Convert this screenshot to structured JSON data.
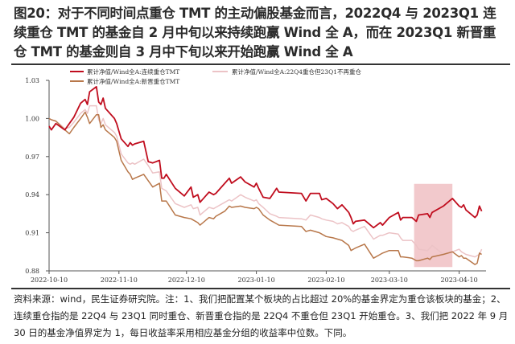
{
  "title": "图20：对于不同时间点重仓 TMT 的主动偏股基金而言，2022Q4 与 2023Q1 连续重仓 TMT 的基金自 2 月中旬以来持续跑赢 Wind 全 A，而在 2023Q1 新晋重仓 TMT 的基金则自 3 月中下旬以来开始跑赢 Wind 全 A",
  "source": "资料来源：wind，民生证券研究院。注：1、我们把配置某个板块的占比超过 20%的基金界定为重仓该板块的基金；2、连续重仓指的是 22Q4 与 23Q1 同时重仓、新晋重仓指的是 22Q4 不重仓但 23Q1 开始重仓。3、我们把 2022 年 9 月 30 日的基金净值界定为 1，每日收益率采用相应基金分组的收益率中位数。下同。",
  "chart_data": {
    "type": "line",
    "ylim": [
      0.88,
      1.03
    ],
    "yticks": [
      "1.03",
      "1.00",
      "0.97",
      "0.94",
      "0.91",
      "0.88"
    ],
    "xticks": [
      "2022-10-10",
      "2022-11-10",
      "2022-12-10",
      "2023-01-10",
      "2023-02-10",
      "2023-03-10",
      "2023-04-10"
    ],
    "grid": false,
    "legend_position": "top",
    "highlight_band": {
      "x": [
        "2023-03-21",
        "2023-04-07"
      ],
      "y": [
        0.883,
        0.9485
      ],
      "color": "#e9a5aa"
    },
    "x": [
      "2022-10-10",
      "2022-10-11",
      "2022-10-13",
      "2022-10-17",
      "2022-10-19",
      "2022-10-21",
      "2022-10-24",
      "2022-10-26",
      "2022-10-27",
      "2022-10-28",
      "2022-10-31",
      "2022-11-01",
      "2022-11-02",
      "2022-11-03",
      "2022-11-04",
      "2022-11-08",
      "2022-11-09",
      "2022-11-11",
      "2022-11-14",
      "2022-11-15",
      "2022-11-16",
      "2022-11-17",
      "2022-11-21",
      "2022-11-23",
      "2022-11-25",
      "2022-11-28",
      "2022-11-29",
      "2022-11-30",
      "2022-12-01",
      "2022-12-05",
      "2022-12-09",
      "2022-12-12",
      "2022-12-13",
      "2022-12-15",
      "2022-12-16",
      "2022-12-20",
      "2022-12-22",
      "2022-12-23",
      "2022-12-27",
      "2022-12-29",
      "2022-12-30",
      "2023-01-03",
      "2023-01-05",
      "2023-01-09",
      "2023-01-10",
      "2023-01-11",
      "2023-01-13",
      "2023-01-16",
      "2023-01-19",
      "2023-01-20",
      "2023-01-30",
      "2023-02-01",
      "2023-02-03",
      "2023-02-07",
      "2023-02-08",
      "2023-02-10",
      "2023-02-13",
      "2023-02-15",
      "2023-02-17",
      "2023-02-20",
      "2023-02-21",
      "2023-02-22",
      "2023-02-23",
      "2023-02-27",
      "2023-03-03",
      "2023-03-06",
      "2023-03-07",
      "2023-03-10",
      "2023-03-14",
      "2023-03-15",
      "2023-03-16",
      "2023-03-20",
      "2023-03-22",
      "2023-03-23",
      "2023-03-27",
      "2023-03-28",
      "2023-03-29",
      "2023-04-03",
      "2023-04-07",
      "2023-04-10",
      "2023-04-11",
      "2023-04-12",
      "2023-04-13",
      "2023-04-17",
      "2023-04-18",
      "2023-04-19",
      "2023-04-20"
    ],
    "series": [
      {
        "name": "累计净值/Wind全A:连续重仓TMT",
        "color": "#c00d1e",
        "values": [
          0.994,
          0.991,
          0.996,
          0.991,
          0.996,
          1.001,
          1.012,
          1.015,
          1.011,
          1.021,
          1.025,
          1.013,
          1.011,
          1.016,
          1.008,
          1.0,
          0.996,
          0.984,
          0.978,
          0.981,
          0.979,
          0.98,
          0.982,
          0.966,
          0.965,
          0.967,
          0.953,
          0.953,
          0.956,
          0.945,
          0.939,
          0.946,
          0.938,
          0.94,
          0.934,
          0.942,
          0.94,
          0.941,
          0.949,
          0.953,
          0.949,
          0.954,
          0.95,
          0.946,
          0.949,
          0.945,
          0.938,
          0.937,
          0.945,
          0.942,
          0.941,
          0.935,
          0.941,
          0.941,
          0.936,
          0.937,
          0.933,
          0.929,
          0.932,
          0.926,
          0.922,
          0.917,
          0.919,
          0.92,
          0.914,
          0.918,
          0.916,
          0.922,
          0.926,
          0.92,
          0.922,
          0.922,
          0.919,
          0.924,
          0.925,
          0.922,
          0.926,
          0.931,
          0.937,
          0.931,
          0.93,
          0.932,
          0.928,
          0.922,
          0.924,
          0.931,
          0.927
        ]
      },
      {
        "name": "累计净值/Wind全A:22Q4重仓但23Q1不再重仓",
        "color": "#ecc3c6",
        "values": [
          1.0,
          0.999,
          0.998,
          0.992,
          0.993,
          0.997,
          1.004,
          1.007,
          1.004,
          1.01,
          1.01,
          0.999,
          0.996,
          1.0,
          0.995,
          0.989,
          0.986,
          0.972,
          0.965,
          0.964,
          0.965,
          0.964,
          0.968,
          0.963,
          0.957,
          0.958,
          0.945,
          0.944,
          0.943,
          0.933,
          0.93,
          0.932,
          0.929,
          0.93,
          0.924,
          0.93,
          0.929,
          0.93,
          0.934,
          0.936,
          0.935,
          0.94,
          0.938,
          0.935,
          0.936,
          0.933,
          0.93,
          0.925,
          0.923,
          0.922,
          0.921,
          0.92,
          0.924,
          0.922,
          0.921,
          0.92,
          0.919,
          0.917,
          0.918,
          0.915,
          0.912,
          0.911,
          0.912,
          0.915,
          0.905,
          0.908,
          0.908,
          0.91,
          0.909,
          0.906,
          0.904,
          0.904,
          0.9,
          0.897,
          0.896,
          0.898,
          0.9,
          0.893,
          0.895,
          0.897,
          0.895,
          0.894,
          0.893,
          0.891,
          0.892,
          0.893,
          0.897
        ]
      },
      {
        "name": "累计净值/Wind全A:新晋重仓TMT",
        "color": "#b8774a",
        "values": [
          1.0,
          0.999,
          0.998,
          0.991,
          0.988,
          0.993,
          1.0,
          1.005,
          1.001,
          0.996,
          1.003,
          1.003,
          0.993,
          0.995,
          0.991,
          0.985,
          0.982,
          0.967,
          0.958,
          0.956,
          0.952,
          0.953,
          0.956,
          0.951,
          0.946,
          0.949,
          0.935,
          0.935,
          0.935,
          0.924,
          0.922,
          0.921,
          0.92,
          0.918,
          0.916,
          0.922,
          0.921,
          0.923,
          0.927,
          0.931,
          0.93,
          0.931,
          0.93,
          0.929,
          0.93,
          0.929,
          0.924,
          0.92,
          0.917,
          0.916,
          0.915,
          0.911,
          0.912,
          0.91,
          0.909,
          0.907,
          0.906,
          0.905,
          0.904,
          0.9,
          0.896,
          0.897,
          0.898,
          0.901,
          0.89,
          0.893,
          0.894,
          0.896,
          0.896,
          0.891,
          0.891,
          0.89,
          0.888,
          0.888,
          0.89,
          0.889,
          0.891,
          0.893,
          0.895,
          0.891,
          0.892,
          0.89,
          0.89,
          0.885,
          0.886,
          0.894,
          0.893
        ]
      }
    ]
  }
}
